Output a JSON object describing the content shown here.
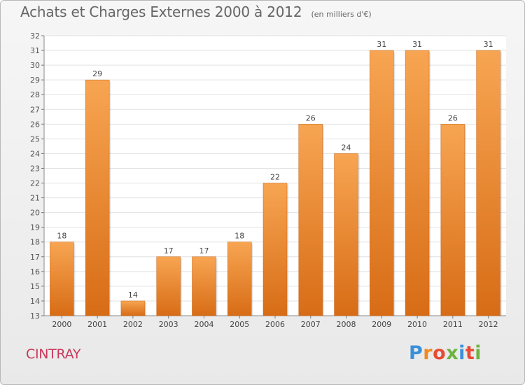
{
  "chart_data": {
    "type": "bar",
    "title": "Achats et Charges Externes 2000 à 2012",
    "subtitle": "(en milliers d'€)",
    "categories": [
      "2000",
      "2001",
      "2002",
      "2003",
      "2004",
      "2005",
      "2006",
      "2007",
      "2008",
      "2009",
      "2010",
      "2011",
      "2012"
    ],
    "values": [
      18,
      29,
      14,
      17,
      17,
      18,
      22,
      26,
      24,
      31,
      31,
      26,
      31
    ],
    "ylim": [
      13,
      32
    ],
    "yticks": [
      13,
      14,
      15,
      16,
      17,
      18,
      19,
      20,
      21,
      22,
      23,
      24,
      25,
      26,
      27,
      28,
      29,
      30,
      31,
      32
    ],
    "grid": true,
    "bar_color": "#f0892a",
    "xlabel": "",
    "ylabel": ""
  },
  "commune": "CINTRAY",
  "logo": {
    "letters": [
      "P",
      "r",
      "o",
      "x",
      "i",
      "t",
      "i"
    ],
    "colors": [
      "#3a8fd8",
      "#f08a1c",
      "#e84a33",
      "#6cb33f",
      "#3a8fd8",
      "#e84a33",
      "#6cb33f"
    ]
  }
}
